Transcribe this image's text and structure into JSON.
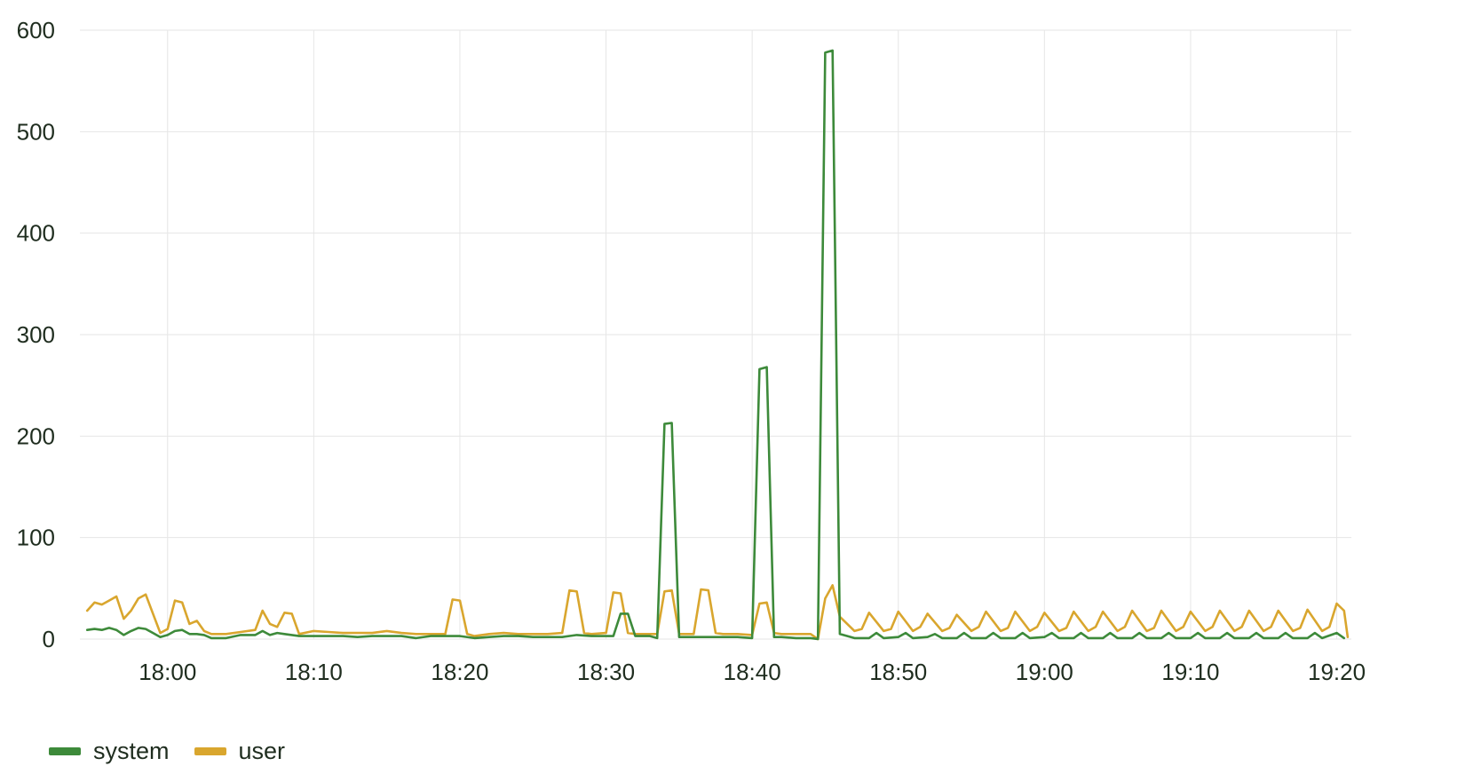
{
  "chart_data": {
    "type": "line",
    "title": "",
    "xlabel": "",
    "ylabel": "",
    "x_domain": [
      "17:54",
      "19:21"
    ],
    "ylim": [
      0,
      600
    ],
    "y_ticks": [
      0,
      100,
      200,
      300,
      400,
      500,
      600
    ],
    "y_tick_labels": [
      "0",
      "100",
      "200",
      "300",
      "400",
      "500",
      "600"
    ],
    "x_ticks": [
      "18:00",
      "18:10",
      "18:20",
      "18:30",
      "18:40",
      "18:50",
      "19:00",
      "19:10",
      "19:20"
    ],
    "grid": true,
    "legend_position": "bottom-left",
    "series": [
      {
        "name": "system",
        "color": "#3d8a3a",
        "points": [
          [
            "17:54:30",
            9
          ],
          [
            "17:55:00",
            10
          ],
          [
            "17:55:30",
            9
          ],
          [
            "17:56:00",
            11
          ],
          [
            "17:56:30",
            9
          ],
          [
            "17:57:00",
            4
          ],
          [
            "17:57:30",
            8
          ],
          [
            "17:58:00",
            11
          ],
          [
            "17:58:30",
            10
          ],
          [
            "17:59:00",
            6
          ],
          [
            "17:59:30",
            2
          ],
          [
            "18:00:00",
            4
          ],
          [
            "18:00:30",
            8
          ],
          [
            "18:01:00",
            9
          ],
          [
            "18:01:30",
            5
          ],
          [
            "18:02:00",
            5
          ],
          [
            "18:02:30",
            4
          ],
          [
            "18:03:00",
            1
          ],
          [
            "18:04:00",
            1
          ],
          [
            "18:05:00",
            4
          ],
          [
            "18:06:00",
            4
          ],
          [
            "18:06:30",
            8
          ],
          [
            "18:07:00",
            4
          ],
          [
            "18:07:30",
            6
          ],
          [
            "18:08:00",
            5
          ],
          [
            "18:09:00",
            3
          ],
          [
            "18:10:00",
            3
          ],
          [
            "18:11:00",
            3
          ],
          [
            "18:12:00",
            3
          ],
          [
            "18:13:00",
            2
          ],
          [
            "18:14:00",
            3
          ],
          [
            "18:15:00",
            3
          ],
          [
            "18:16:00",
            3
          ],
          [
            "18:17:00",
            1
          ],
          [
            "18:18:00",
            3
          ],
          [
            "18:19:00",
            3
          ],
          [
            "18:20:00",
            3
          ],
          [
            "18:21:00",
            1
          ],
          [
            "18:22:00",
            2
          ],
          [
            "18:23:00",
            3
          ],
          [
            "18:24:00",
            3
          ],
          [
            "18:25:00",
            2
          ],
          [
            "18:26:00",
            2
          ],
          [
            "18:27:00",
            2
          ],
          [
            "18:28:00",
            4
          ],
          [
            "18:29:00",
            3
          ],
          [
            "18:30:00",
            3
          ],
          [
            "18:30:30",
            3
          ],
          [
            "18:31:00",
            25
          ],
          [
            "18:31:30",
            25
          ],
          [
            "18:32:00",
            3
          ],
          [
            "18:33:00",
            3
          ],
          [
            "18:33:30",
            1
          ],
          [
            "18:34:00",
            212
          ],
          [
            "18:34:30",
            213
          ],
          [
            "18:35:00",
            2
          ],
          [
            "18:36:00",
            2
          ],
          [
            "18:37:00",
            2
          ],
          [
            "18:38:00",
            2
          ],
          [
            "18:39:00",
            2
          ],
          [
            "18:40:00",
            1
          ],
          [
            "18:40:30",
            266
          ],
          [
            "18:41:00",
            268
          ],
          [
            "18:41:30",
            2
          ],
          [
            "18:42:00",
            2
          ],
          [
            "18:43:00",
            1
          ],
          [
            "18:44:00",
            1
          ],
          [
            "18:44:30",
            0
          ],
          [
            "18:45:00",
            578
          ],
          [
            "18:45:30",
            580
          ],
          [
            "18:46:00",
            5
          ],
          [
            "18:47:00",
            1
          ],
          [
            "18:48:00",
            1
          ],
          [
            "18:48:30",
            6
          ],
          [
            "18:49:00",
            1
          ],
          [
            "18:50:00",
            2
          ],
          [
            "18:50:30",
            6
          ],
          [
            "18:51:00",
            1
          ],
          [
            "18:52:00",
            2
          ],
          [
            "18:52:30",
            5
          ],
          [
            "18:53:00",
            1
          ],
          [
            "18:54:00",
            1
          ],
          [
            "18:54:30",
            6
          ],
          [
            "18:55:00",
            1
          ],
          [
            "18:56:00",
            1
          ],
          [
            "18:56:30",
            6
          ],
          [
            "18:57:00",
            1
          ],
          [
            "18:58:00",
            1
          ],
          [
            "18:58:30",
            6
          ],
          [
            "18:59:00",
            1
          ],
          [
            "19:00:00",
            2
          ],
          [
            "19:00:30",
            6
          ],
          [
            "19:01:00",
            1
          ],
          [
            "19:02:00",
            1
          ],
          [
            "19:02:30",
            6
          ],
          [
            "19:03:00",
            1
          ],
          [
            "19:04:00",
            1
          ],
          [
            "19:04:30",
            6
          ],
          [
            "19:05:00",
            1
          ],
          [
            "19:06:00",
            1
          ],
          [
            "19:06:30",
            6
          ],
          [
            "19:07:00",
            1
          ],
          [
            "19:08:00",
            1
          ],
          [
            "19:08:30",
            6
          ],
          [
            "19:09:00",
            1
          ],
          [
            "19:10:00",
            1
          ],
          [
            "19:10:30",
            6
          ],
          [
            "19:11:00",
            1
          ],
          [
            "19:12:00",
            1
          ],
          [
            "19:12:30",
            6
          ],
          [
            "19:13:00",
            1
          ],
          [
            "19:14:00",
            1
          ],
          [
            "19:14:30",
            6
          ],
          [
            "19:15:00",
            1
          ],
          [
            "19:16:00",
            1
          ],
          [
            "19:16:30",
            6
          ],
          [
            "19:17:00",
            1
          ],
          [
            "19:18:00",
            1
          ],
          [
            "19:18:30",
            6
          ],
          [
            "19:19:00",
            1
          ],
          [
            "19:20:00",
            6
          ],
          [
            "19:20:30",
            1
          ]
        ]
      },
      {
        "name": "user",
        "color": "#d9a62e",
        "points": [
          [
            "17:54:30",
            28
          ],
          [
            "17:55:00",
            36
          ],
          [
            "17:55:30",
            34
          ],
          [
            "17:56:00",
            38
          ],
          [
            "17:56:30",
            42
          ],
          [
            "17:57:00",
            20
          ],
          [
            "17:57:30",
            28
          ],
          [
            "17:58:00",
            40
          ],
          [
            "17:58:30",
            44
          ],
          [
            "17:59:00",
            25
          ],
          [
            "17:59:30",
            6
          ],
          [
            "18:00:00",
            10
          ],
          [
            "18:00:30",
            38
          ],
          [
            "18:01:00",
            36
          ],
          [
            "18:01:30",
            15
          ],
          [
            "18:02:00",
            18
          ],
          [
            "18:02:30",
            8
          ],
          [
            "18:03:00",
            5
          ],
          [
            "18:04:00",
            5
          ],
          [
            "18:05:00",
            7
          ],
          [
            "18:06:00",
            9
          ],
          [
            "18:06:30",
            28
          ],
          [
            "18:07:00",
            15
          ],
          [
            "18:07:30",
            12
          ],
          [
            "18:08:00",
            26
          ],
          [
            "18:08:30",
            25
          ],
          [
            "18:09:00",
            5
          ],
          [
            "18:10:00",
            8
          ],
          [
            "18:11:00",
            7
          ],
          [
            "18:12:00",
            6
          ],
          [
            "18:13:00",
            6
          ],
          [
            "18:14:00",
            6
          ],
          [
            "18:15:00",
            8
          ],
          [
            "18:16:00",
            6
          ],
          [
            "18:17:00",
            5
          ],
          [
            "18:18:00",
            5
          ],
          [
            "18:19:00",
            5
          ],
          [
            "18:19:30",
            39
          ],
          [
            "18:20:00",
            38
          ],
          [
            "18:20:30",
            5
          ],
          [
            "18:21:00",
            3
          ],
          [
            "18:22:00",
            5
          ],
          [
            "18:23:00",
            6
          ],
          [
            "18:24:00",
            5
          ],
          [
            "18:25:00",
            5
          ],
          [
            "18:26:00",
            5
          ],
          [
            "18:27:00",
            6
          ],
          [
            "18:27:30",
            48
          ],
          [
            "18:28:00",
            47
          ],
          [
            "18:28:30",
            6
          ],
          [
            "18:29:00",
            5
          ],
          [
            "18:30:00",
            6
          ],
          [
            "18:30:30",
            46
          ],
          [
            "18:31:00",
            45
          ],
          [
            "18:31:30",
            6
          ],
          [
            "18:32:00",
            5
          ],
          [
            "18:33:00",
            5
          ],
          [
            "18:33:30",
            5
          ],
          [
            "18:34:00",
            47
          ],
          [
            "18:34:30",
            48
          ],
          [
            "18:35:00",
            5
          ],
          [
            "18:36:00",
            5
          ],
          [
            "18:36:30",
            49
          ],
          [
            "18:37:00",
            48
          ],
          [
            "18:37:30",
            6
          ],
          [
            "18:38:00",
            5
          ],
          [
            "18:39:00",
            5
          ],
          [
            "18:40:00",
            4
          ],
          [
            "18:40:30",
            35
          ],
          [
            "18:41:00",
            36
          ],
          [
            "18:41:30",
            6
          ],
          [
            "18:42:00",
            5
          ],
          [
            "18:43:00",
            5
          ],
          [
            "18:44:00",
            5
          ],
          [
            "18:44:30",
            0
          ],
          [
            "18:45:00",
            40
          ],
          [
            "18:45:30",
            53
          ],
          [
            "18:46:00",
            22
          ],
          [
            "18:47:00",
            8
          ],
          [
            "18:47:30",
            10
          ],
          [
            "18:48:00",
            26
          ],
          [
            "18:49:00",
            8
          ],
          [
            "18:49:30",
            10
          ],
          [
            "18:50:00",
            27
          ],
          [
            "18:51:00",
            8
          ],
          [
            "18:51:30",
            12
          ],
          [
            "18:52:00",
            25
          ],
          [
            "18:53:00",
            8
          ],
          [
            "18:53:30",
            11
          ],
          [
            "18:54:00",
            24
          ],
          [
            "18:55:00",
            8
          ],
          [
            "18:55:30",
            12
          ],
          [
            "18:56:00",
            27
          ],
          [
            "18:57:00",
            8
          ],
          [
            "18:57:30",
            11
          ],
          [
            "18:58:00",
            27
          ],
          [
            "18:59:00",
            8
          ],
          [
            "18:59:30",
            12
          ],
          [
            "19:00:00",
            26
          ],
          [
            "19:01:00",
            8
          ],
          [
            "19:01:30",
            11
          ],
          [
            "19:02:00",
            27
          ],
          [
            "19:03:00",
            8
          ],
          [
            "19:03:30",
            12
          ],
          [
            "19:04:00",
            27
          ],
          [
            "19:05:00",
            8
          ],
          [
            "19:05:30",
            12
          ],
          [
            "19:06:00",
            28
          ],
          [
            "19:07:00",
            8
          ],
          [
            "19:07:30",
            11
          ],
          [
            "19:08:00",
            28
          ],
          [
            "19:09:00",
            8
          ],
          [
            "19:09:30",
            12
          ],
          [
            "19:10:00",
            27
          ],
          [
            "19:11:00",
            8
          ],
          [
            "19:11:30",
            12
          ],
          [
            "19:12:00",
            28
          ],
          [
            "19:13:00",
            8
          ],
          [
            "19:13:30",
            12
          ],
          [
            "19:14:00",
            28
          ],
          [
            "19:15:00",
            8
          ],
          [
            "19:15:30",
            12
          ],
          [
            "19:16:00",
            28
          ],
          [
            "19:17:00",
            8
          ],
          [
            "19:17:30",
            11
          ],
          [
            "19:18:00",
            29
          ],
          [
            "19:19:00",
            8
          ],
          [
            "19:19:30",
            12
          ],
          [
            "19:20:00",
            35
          ],
          [
            "19:20:30",
            28
          ],
          [
            "19:20:45",
            2
          ]
        ]
      }
    ]
  }
}
